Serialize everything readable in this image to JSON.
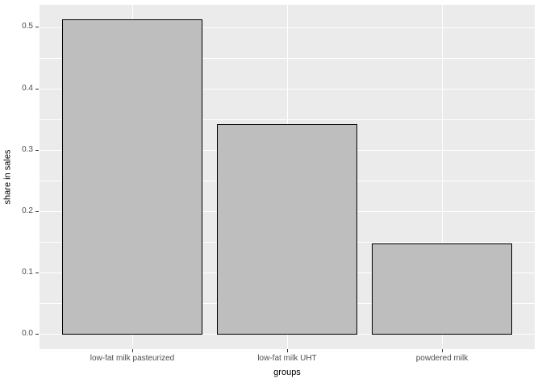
{
  "figure": {
    "background": "#FFFFFF"
  },
  "chart_data": {
    "type": "bar",
    "title": "",
    "xlabel": "groups",
    "ylabel": "share in sales",
    "categories": [
      "low-fat milk pasteurized",
      "low-fat milk UHT",
      "powdered milk"
    ],
    "values": [
      0.512,
      0.341,
      0.147
    ],
    "ylim": [
      -0.025,
      0.536
    ],
    "yticks": [
      0.0,
      0.1,
      0.2,
      0.3,
      0.4,
      0.5
    ],
    "ytick_labels": [
      "0.0",
      "0.1",
      "0.2",
      "0.3",
      "0.4",
      "0.5"
    ],
    "grid": "major and minor horizontal, major vertical at category centers",
    "legend_position": "none",
    "style": {
      "panel_background": "#EBEBEB",
      "grid_major_color": "#FFFFFF",
      "grid_minor_color": "#FFFFFF",
      "bar_fill": "#BEBEBE",
      "bar_border": "#000000",
      "tick_label_color": "#4D4D4D",
      "axis_title_color": "#000000",
      "tick_mark_color": "#333333"
    }
  }
}
